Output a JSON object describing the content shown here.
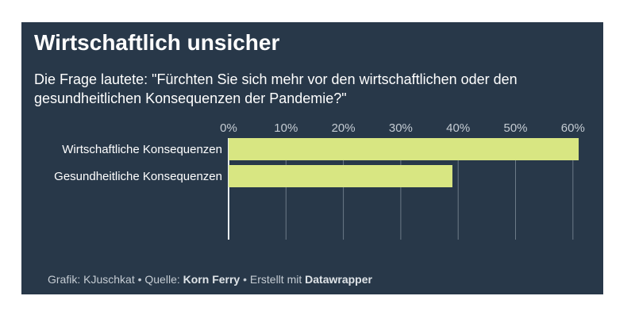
{
  "title": "Wirtschaftlich unsicher",
  "subtitle": "Die Frage lautete: \"Fürchten Sie sich mehr vor den wirtschaftlichen oder den gesundheitlichen Konsequenzen der Pandemie?\"",
  "footer": {
    "grafik_label": "Grafik: KJuschkat",
    "sep1": " • Quelle: ",
    "source": "Korn Ferry",
    "sep2": " • Erstellt mit ",
    "tool": "Datawrapper"
  },
  "colors": {
    "background": "#283849",
    "bar": "#d8e682",
    "grid": "#6c7a88"
  },
  "chart_data": {
    "type": "bar",
    "orientation": "horizontal",
    "categories": [
      "Wirtschaftliche Konsequenzen",
      "Gesundheitliche Konsequenzen"
    ],
    "values": [
      61,
      39
    ],
    "xlim": [
      0,
      60
    ],
    "x_ticks": [
      "0%",
      "10%",
      "20%",
      "30%",
      "40%",
      "50%",
      "60%"
    ],
    "grid": true
  }
}
